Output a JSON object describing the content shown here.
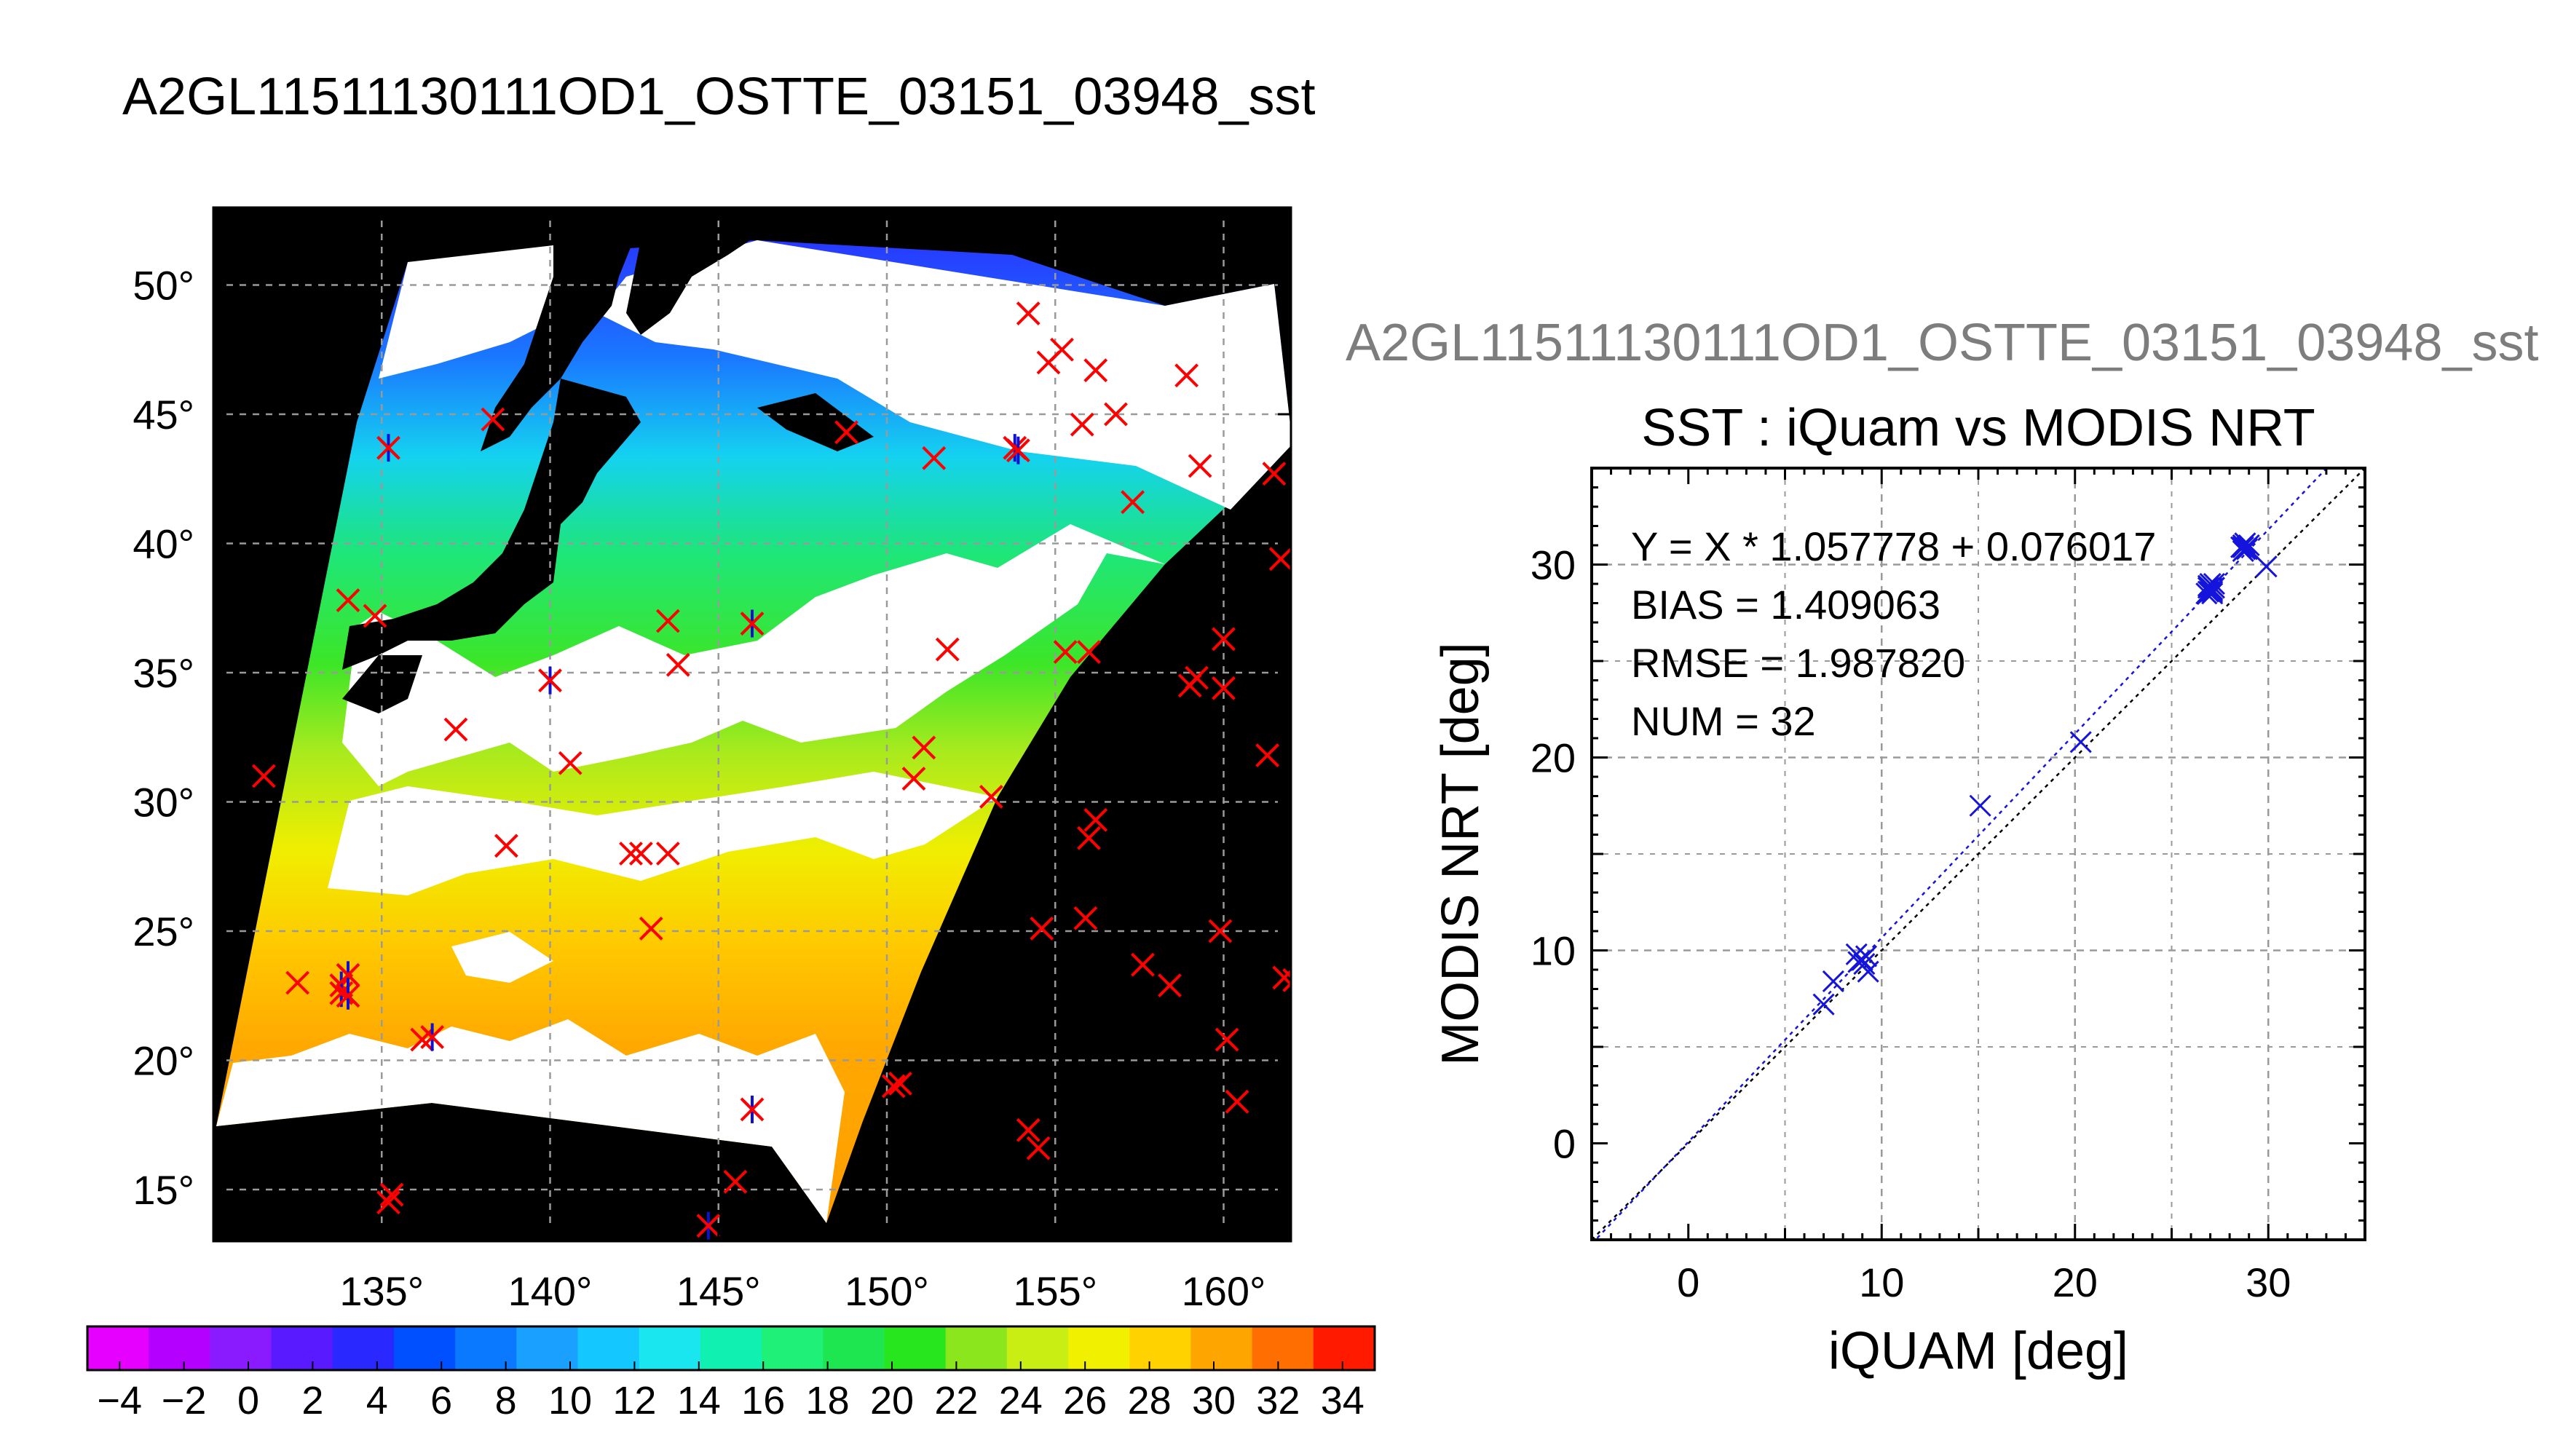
{
  "figure": {
    "title": "A2GL11511130111OD1_OSTTE_03151_03948_sst",
    "ghost_title": "A2GL11511130111OD1_OSTTE_03151_03948_sst"
  },
  "chart_data": [
    {
      "type": "map",
      "x_ticks": [
        "135°",
        "140°",
        "145°",
        "150°",
        "155°",
        "160°"
      ],
      "y_ticks": [
        "15°",
        "20°",
        "25°",
        "30°",
        "35°",
        "40°",
        "45°",
        "50°"
      ],
      "lon_range": [
        130,
        162
      ],
      "lat_range": [
        13,
        53
      ],
      "grid": true,
      "colors": {
        "land": "#000000",
        "cloud": "#ffffff",
        "red_marker": "#ff0000",
        "blue_marker": "#1010d0"
      },
      "colorbar": {
        "ticks": [
          "−4",
          "−2",
          "0",
          "2",
          "4",
          "6",
          "8",
          "10",
          "12",
          "14",
          "16",
          "18",
          "20",
          "22",
          "24",
          "26",
          "28",
          "30",
          "32",
          "34"
        ],
        "range": [
          -5,
          35
        ],
        "colors": [
          "#e600ff",
          "#b300ff",
          "#8a1aff",
          "#5a1aff",
          "#2828ff",
          "#0050ff",
          "#0a78ff",
          "#1aa0ff",
          "#14c8ff",
          "#1ae6f0",
          "#10f0b0",
          "#1ef078",
          "#1ee650",
          "#28e61e",
          "#8ce61e",
          "#c8ee14",
          "#f0f000",
          "#ffd200",
          "#ffa500",
          "#ff6e00",
          "#ff1a00"
        ]
      },
      "red_markers": [
        [
          131.5,
          31
        ],
        [
          132.5,
          23
        ],
        [
          134,
          37.8
        ],
        [
          134.8,
          37.2
        ],
        [
          135.2,
          14.5
        ],
        [
          135.3,
          14.8
        ],
        [
          136.2,
          20.8
        ],
        [
          137.2,
          32.8
        ],
        [
          138.3,
          44.8
        ],
        [
          138.7,
          28.3
        ],
        [
          140.6,
          31.5
        ],
        [
          142.4,
          28
        ],
        [
          142.7,
          28
        ],
        [
          143,
          25.1
        ],
        [
          143.5,
          37
        ],
        [
          143.5,
          28
        ],
        [
          143.8,
          35.3
        ],
        [
          145.5,
          15.3
        ],
        [
          148.8,
          44.3
        ],
        [
          150.2,
          19
        ],
        [
          150.4,
          19.1
        ],
        [
          150.8,
          30.9
        ],
        [
          151.1,
          32.1
        ],
        [
          151.4,
          43.3
        ],
        [
          151.8,
          35.9
        ],
        [
          153.1,
          30.2
        ],
        [
          154.2,
          48.9
        ],
        [
          154.2,
          17.3
        ],
        [
          154.5,
          16.6
        ],
        [
          154.6,
          25.1
        ],
        [
          154.8,
          47
        ],
        [
          155.2,
          47.5
        ],
        [
          155.3,
          35.8
        ],
        [
          155.8,
          44.6
        ],
        [
          155.9,
          25.5
        ],
        [
          156,
          35.8
        ],
        [
          156,
          28.6
        ],
        [
          156.2,
          29.3
        ],
        [
          156.2,
          46.7
        ],
        [
          156.8,
          45
        ],
        [
          157.3,
          41.6
        ],
        [
          157.6,
          23.7
        ],
        [
          158.4,
          22.9
        ],
        [
          158.9,
          46.5
        ],
        [
          159,
          34.5
        ],
        [
          159.2,
          34.8
        ],
        [
          159.3,
          43
        ],
        [
          159.9,
          25
        ],
        [
          160,
          36.3
        ],
        [
          160,
          34.4
        ],
        [
          160.1,
          20.8
        ],
        [
          160.4,
          18.4
        ],
        [
          161.3,
          31.8
        ],
        [
          161.5,
          42.7
        ],
        [
          161.7,
          39.4
        ],
        [
          161.8,
          23.2
        ],
        [
          162.1,
          23.1
        ]
      ],
      "matched_markers": [
        [
          133.8,
          22.9
        ],
        [
          133.8,
          22.6
        ],
        [
          134,
          22.5
        ],
        [
          134,
          23.3
        ],
        [
          135.2,
          43.7
        ],
        [
          136.5,
          20.9
        ],
        [
          140,
          34.7
        ],
        [
          144.7,
          13.6
        ],
        [
          146,
          36.9
        ],
        [
          146,
          18.1
        ],
        [
          153.8,
          43.7
        ],
        [
          153.9,
          43.6
        ]
      ]
    },
    {
      "type": "scatter",
      "title": "SST : iQuam vs MODIS NRT",
      "xlabel": "iQUAM [deg]",
      "ylabel": "MODIS NRT [deg]",
      "xlim": [
        -5,
        35
      ],
      "ylim": [
        -5,
        35
      ],
      "x_ticks": [
        "0",
        "10",
        "20",
        "30"
      ],
      "y_ticks": [
        "0",
        "10",
        "20",
        "30"
      ],
      "grid": true,
      "stats": {
        "equation": "Y = X * 1.057778 + 0.076017",
        "bias": "BIAS = 1.409063",
        "rmse": "RMSE = 1.987820",
        "num": "NUM = 32"
      },
      "fit": {
        "slope": 1.057778,
        "intercept": 0.076017
      },
      "colors": {
        "points": "#1414dc",
        "fit_line": "#1414dc",
        "identity_line": "#000000"
      },
      "points": [
        [
          7,
          7.2
        ],
        [
          7.5,
          8.4
        ],
        [
          8.7,
          9.8
        ],
        [
          8.8,
          9.4
        ],
        [
          9,
          9.5
        ],
        [
          9.2,
          9.7
        ],
        [
          9.1,
          9.3
        ],
        [
          9.3,
          8.9
        ],
        [
          15.1,
          17.5
        ],
        [
          20.3,
          20.8
        ],
        [
          26.8,
          28.5
        ],
        [
          26.9,
          28.9
        ],
        [
          27,
          28.6
        ],
        [
          27,
          28.8
        ],
        [
          27.1,
          28.7
        ],
        [
          27.2,
          28.8
        ],
        [
          26.9,
          28.6
        ],
        [
          27,
          29
        ],
        [
          27.1,
          28.5
        ],
        [
          27.2,
          29
        ],
        [
          28.6,
          30.9
        ],
        [
          28.7,
          31
        ],
        [
          28.8,
          30.8
        ],
        [
          28.9,
          30.8
        ],
        [
          28.7,
          30.7
        ],
        [
          29,
          31
        ],
        [
          28.8,
          31.1
        ],
        [
          28.9,
          30.9
        ],
        [
          29.9,
          29.9
        ],
        [
          26.9,
          28.8
        ],
        [
          27.1,
          28.6
        ],
        [
          28.7,
          30.9
        ]
      ]
    }
  ]
}
